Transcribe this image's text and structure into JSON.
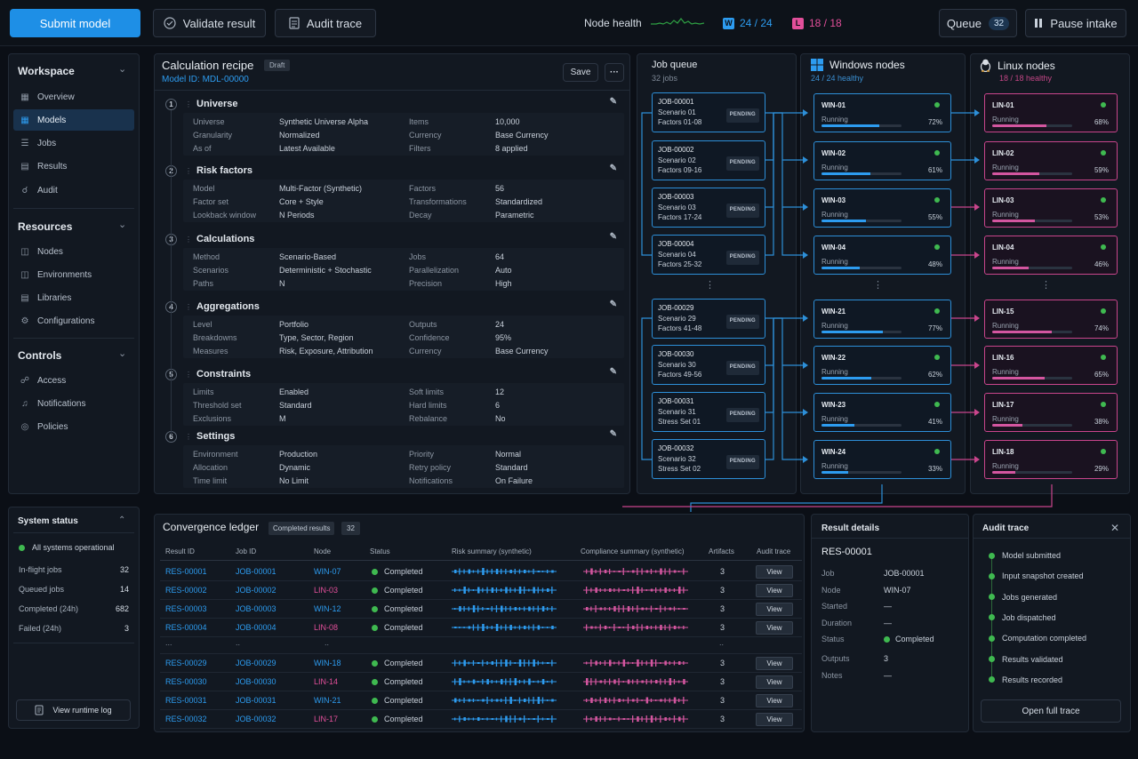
{
  "top": {
    "submit": "Submit model",
    "validate": "Validate result",
    "audit_trace": "Audit trace",
    "node_health": "Node health",
    "win_count": "24 / 24",
    "lin_count": "18 / 18",
    "queue": "Queue",
    "queue_count": "32",
    "pause": "Pause intake"
  },
  "sidebar": {
    "workspace": "Workspace",
    "workspace_items": [
      "Overview",
      "Models",
      "Jobs",
      "Results",
      "Audit"
    ],
    "resources": "Resources",
    "resources_items": [
      "Nodes",
      "Environments",
      "Libraries",
      "Configurations"
    ],
    "controls": "Controls",
    "controls_items": [
      "Access",
      "Notifications",
      "Policies"
    ]
  },
  "status": {
    "title": "System status",
    "ok": "All systems operational",
    "rows": [
      {
        "label": "In-flight jobs",
        "value": "32"
      },
      {
        "label": "Queued jobs",
        "value": "14"
      },
      {
        "label": "Completed (24h)",
        "value": "682"
      },
      {
        "label": "Failed (24h)",
        "value": "3"
      }
    ],
    "log": "View runtime log"
  },
  "recipe": {
    "title": "Calculation recipe",
    "badge": "Draft",
    "model_id": "Model ID: MDL-00000",
    "save": "Save",
    "more": "···",
    "sections": [
      {
        "num": "1",
        "title": "Universe",
        "rows": [
          [
            "Universe",
            "Synthetic Universe Alpha",
            "Items",
            "10,000"
          ],
          [
            "Granularity",
            "Normalized",
            "Currency",
            "Base Currency"
          ],
          [
            "As of",
            "Latest Available",
            "Filters",
            "8 applied"
          ]
        ]
      },
      {
        "num": "2",
        "title": "Risk factors",
        "rows": [
          [
            "Model",
            "Multi-Factor (Synthetic)",
            "Factors",
            "56"
          ],
          [
            "Factor set",
            "Core + Style",
            "Transformations",
            "Standardized"
          ],
          [
            "Lookback window",
            "N Periods",
            "Decay",
            "Parametric"
          ]
        ]
      },
      {
        "num": "3",
        "title": "Calculations",
        "rows": [
          [
            "Method",
            "Scenario-Based",
            "Jobs",
            "64"
          ],
          [
            "Scenarios",
            "Deterministic + Stochastic",
            "Parallelization",
            "Auto"
          ],
          [
            "Paths",
            "N",
            "Precision",
            "High"
          ]
        ]
      },
      {
        "num": "4",
        "title": "Aggregations",
        "rows": [
          [
            "Level",
            "Portfolio",
            "Outputs",
            "24"
          ],
          [
            "Breakdowns",
            "Type, Sector, Region",
            "Confidence",
            "95%"
          ],
          [
            "Measures",
            "Risk, Exposure, Attribution",
            "Currency",
            "Base Currency"
          ]
        ]
      },
      {
        "num": "5",
        "title": "Constraints",
        "rows": [
          [
            "Limits",
            "Enabled",
            "Soft limits",
            "12"
          ],
          [
            "Threshold set",
            "Standard",
            "Hard limits",
            "6"
          ],
          [
            "Exclusions",
            "M",
            "Rebalance",
            "No"
          ]
        ]
      },
      {
        "num": "6",
        "title": "Settings",
        "rows": [
          [
            "Environment",
            "Production",
            "Priority",
            "Normal"
          ],
          [
            "Allocation",
            "Dynamic",
            "Retry policy",
            "Standard"
          ],
          [
            "Time limit",
            "No Limit",
            "Notifications",
            "On Failure"
          ]
        ]
      }
    ]
  },
  "queue": {
    "title": "Job queue",
    "sub": "32 jobs",
    "pending": "PENDING",
    "jobs": [
      [
        "JOB-00001",
        "Scenario 01",
        "Factors 01-08"
      ],
      [
        "JOB-00002",
        "Scenario 02",
        "Factors 09-16"
      ],
      [
        "JOB-00003",
        "Scenario 03",
        "Factors 17-24"
      ],
      [
        "JOB-00004",
        "Scenario 04",
        "Factors 25-32"
      ],
      [
        "JOB-00029",
        "Scenario 29",
        "Factors 41-48"
      ],
      [
        "JOB-00030",
        "Scenario 30",
        "Factors 49-56"
      ],
      [
        "JOB-00031",
        "Scenario 31",
        "Stress Set 01"
      ],
      [
        "JOB-00032",
        "Scenario 32",
        "Stress Set 02"
      ]
    ]
  },
  "windows": {
    "title": "Windows nodes",
    "sub": "24 / 24 healthy",
    "running": "Running",
    "nodes": [
      {
        "name": "WIN-01",
        "pct": "72%",
        "fill": 0.72
      },
      {
        "name": "WIN-02",
        "pct": "61%",
        "fill": 0.61
      },
      {
        "name": "WIN-03",
        "pct": "55%",
        "fill": 0.55
      },
      {
        "name": "WIN-04",
        "pct": "48%",
        "fill": 0.48
      },
      {
        "name": "WIN-21",
        "pct": "77%",
        "fill": 0.77
      },
      {
        "name": "WIN-22",
        "pct": "62%",
        "fill": 0.62
      },
      {
        "name": "WIN-23",
        "pct": "41%",
        "fill": 0.41
      },
      {
        "name": "WIN-24",
        "pct": "33%",
        "fill": 0.33
      }
    ]
  },
  "linux": {
    "title": "Linux nodes",
    "sub": "18 / 18 healthy",
    "running": "Running",
    "nodes": [
      {
        "name": "LIN-01",
        "pct": "68%",
        "fill": 0.68
      },
      {
        "name": "LIN-02",
        "pct": "59%",
        "fill": 0.59
      },
      {
        "name": "LIN-03",
        "pct": "53%",
        "fill": 0.53
      },
      {
        "name": "LIN-04",
        "pct": "46%",
        "fill": 0.46
      },
      {
        "name": "LIN-15",
        "pct": "74%",
        "fill": 0.74
      },
      {
        "name": "LIN-16",
        "pct": "65%",
        "fill": 0.65
      },
      {
        "name": "LIN-17",
        "pct": "38%",
        "fill": 0.38
      },
      {
        "name": "LIN-18",
        "pct": "29%",
        "fill": 0.29
      }
    ]
  },
  "ledger": {
    "title": "Convergence ledger",
    "badge": "Completed results",
    "count": "32",
    "headers": [
      "Result ID",
      "Job ID",
      "Node",
      "Status",
      "Risk summary (synthetic)",
      "Compliance summary (synthetic)",
      "Artifacts",
      "Audit trace"
    ],
    "view": "View",
    "gap": [
      "...",
      "..",
      "..",
      "..",
      ".."
    ],
    "rows": [
      {
        "rid": "RES-00001",
        "jid": "JOB-00001",
        "node": "WIN-07",
        "os": "win",
        "status": "Completed",
        "art": "3"
      },
      {
        "rid": "RES-00002",
        "jid": "JOB-00002",
        "node": "LIN-03",
        "os": "lin",
        "status": "Completed",
        "art": "3"
      },
      {
        "rid": "RES-00003",
        "jid": "JOB-00003",
        "node": "WIN-12",
        "os": "win",
        "status": "Completed",
        "art": "3"
      },
      {
        "rid": "RES-00004",
        "jid": "JOB-00004",
        "node": "LIN-08",
        "os": "lin",
        "status": "Completed",
        "art": "3"
      },
      {
        "rid": "RES-00029",
        "jid": "JOB-00029",
        "node": "WIN-18",
        "os": "win",
        "status": "Completed",
        "art": "3"
      },
      {
        "rid": "RES-00030",
        "jid": "JOB-00030",
        "node": "LIN-14",
        "os": "lin",
        "status": "Completed",
        "art": "3"
      },
      {
        "rid": "RES-00031",
        "jid": "JOB-00031",
        "node": "WIN-21",
        "os": "win",
        "status": "Completed",
        "art": "3"
      },
      {
        "rid": "RES-00032",
        "jid": "JOB-00032",
        "node": "LIN-17",
        "os": "lin",
        "status": "Completed",
        "art": "3"
      }
    ]
  },
  "details": {
    "title": "Result details",
    "id": "RES-00001",
    "rows": [
      {
        "k": "Job",
        "v": "JOB-00001"
      },
      {
        "k": "Node",
        "v": "WIN-07"
      },
      {
        "k": "Started",
        "v": "—"
      },
      {
        "k": "Duration",
        "v": "—"
      },
      {
        "k": "Status",
        "v": "Completed"
      },
      {
        "k": "Outputs",
        "v": "3"
      },
      {
        "k": "Notes",
        "v": "—"
      }
    ]
  },
  "audit": {
    "title": "Audit trace",
    "items": [
      "Model submitted",
      "Input snapshot created",
      "Jobs generated",
      "Job dispatched",
      "Computation completed",
      "Results validated",
      "Results recorded"
    ],
    "open": "Open full trace"
  },
  "colors": {
    "accent": "#2d9cf0",
    "linux": "#e24f9a",
    "ok": "#3fb950"
  }
}
